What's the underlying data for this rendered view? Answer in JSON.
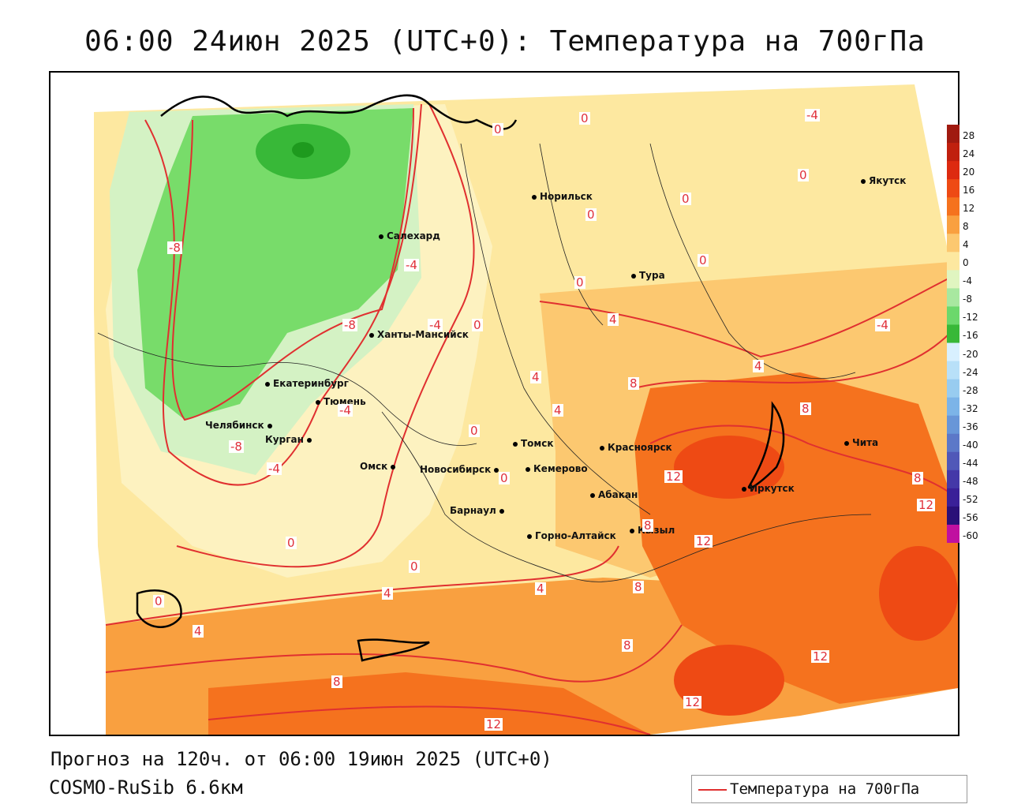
{
  "header": {
    "title": "06:00 24июн 2025 (UTC+0): Температура на 700гПа"
  },
  "footer": {
    "forecast": "Прогноз на 120ч. от 06:00 19июн 2025 (UTC+0)",
    "model": "COSMO-RuSib 6.6км"
  },
  "legend": {
    "label": "Температура на 700гПа",
    "color": "#e03030"
  },
  "colorbar": {
    "labels": [
      "28",
      "24",
      "20",
      "16",
      "12",
      "8",
      "4",
      "0",
      "-4",
      "-8",
      "-12",
      "-16",
      "-20",
      "-24",
      "-28",
      "-32",
      "-36",
      "-40",
      "-44",
      "-48",
      "-52",
      "-56",
      "-60"
    ],
    "colors": [
      "#a01a10",
      "#c0200e",
      "#dd2a10",
      "#ee4a14",
      "#f5721e",
      "#f9a040",
      "#fcc870",
      "#fde8a0",
      "#e0f5c0",
      "#a8e8a0",
      "#6cd86c",
      "#38b838",
      "#d8f0ff",
      "#b8e0f8",
      "#98ccf0",
      "#7cb4e8",
      "#6896d8",
      "#5c78c8",
      "#5058b8",
      "#4438a8",
      "#3a2098",
      "#2a1078",
      "#c010a0"
    ]
  },
  "cities": [
    {
      "name": "Норильск"
    },
    {
      "name": "Якутск"
    },
    {
      "name": "Салехард"
    },
    {
      "name": "Тура"
    },
    {
      "name": "Ханты-Мансийск"
    },
    {
      "name": "Екатеринбург"
    },
    {
      "name": "Тюмень"
    },
    {
      "name": "Челябинск"
    },
    {
      "name": "Курган"
    },
    {
      "name": "Омск"
    },
    {
      "name": "Новосибирск"
    },
    {
      "name": "Томск"
    },
    {
      "name": "Кемерово"
    },
    {
      "name": "Красноярск"
    },
    {
      "name": "Абакан"
    },
    {
      "name": "Барнаул"
    },
    {
      "name": "Горно-Алтайск"
    },
    {
      "name": "Кызыл"
    },
    {
      "name": "Иркутск"
    },
    {
      "name": "Чита"
    }
  ],
  "contour_labels": [
    "0",
    "0",
    "-4",
    "0",
    "0",
    "-8",
    "-4",
    "0",
    "0",
    "-8",
    "-4",
    "0",
    "4",
    "0",
    "4",
    "-4",
    "4",
    "-4",
    "8",
    "4",
    "0",
    "8",
    "-8",
    "-4",
    "0",
    "12",
    "12",
    "8",
    "0",
    "12",
    "8",
    "0",
    "0",
    "4",
    "4",
    "4",
    "8",
    "8",
    "12",
    "8",
    "12",
    "12"
  ]
}
